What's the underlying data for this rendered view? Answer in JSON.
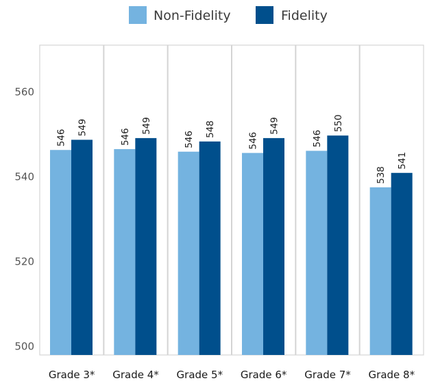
{
  "chart_data": {
    "type": "bar",
    "title": "",
    "xlabel": "",
    "ylabel": "",
    "categories": [
      "Grade 3*",
      "Grade 4*",
      "Grade 5*",
      "Grade 6*",
      "Grade 7*",
      "Grade 8*"
    ],
    "series": [
      {
        "name": "Non-Fidelity",
        "color": "#74b3e0",
        "values": [
          546.3,
          546.5,
          545.9,
          545.6,
          546.1,
          537.5
        ],
        "labels": [
          "546",
          "546",
          "546",
          "546",
          "546",
          "538"
        ]
      },
      {
        "name": "Fidelity",
        "color": "#004f8c",
        "values": [
          548.7,
          549.1,
          548.3,
          549.1,
          549.7,
          540.9
        ],
        "labels": [
          "549",
          "549",
          "548",
          "549",
          "550",
          "541"
        ]
      }
    ],
    "ylim": [
      498,
      571
    ],
    "yticks": [
      500,
      520,
      540,
      560
    ],
    "legend_position": "top-center",
    "grid": false,
    "category_dividers": true
  }
}
